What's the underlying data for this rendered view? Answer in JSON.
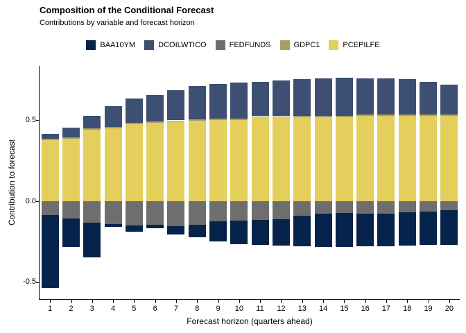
{
  "title": "Composition of the Conditional Forecast",
  "subtitle": "Contributions by variable and forecast horizon",
  "axes": {
    "x_title": "Forecast horizon (quarters ahead)",
    "y_title": "Contribution to forecast",
    "y_ticks": [
      {
        "label": "0.5",
        "value": 0.5
      },
      {
        "label": "0.0",
        "value": 0.0
      },
      {
        "label": "-0.5",
        "value": -0.5
      }
    ]
  },
  "chart_data": {
    "type": "bar",
    "stacked": true,
    "title": "Composition of the Conditional Forecast",
    "subtitle": "Contributions by variable and forecast horizon",
    "xlabel": "Forecast horizon (quarters ahead)",
    "ylabel": "Contribution to forecast",
    "legend_position": "top",
    "grid": false,
    "ylim": [
      -0.6,
      0.78
    ],
    "categories": [
      "1",
      "2",
      "3",
      "4",
      "5",
      "6",
      "7",
      "8",
      "9",
      "10",
      "11",
      "12",
      "13",
      "14",
      "15",
      "16",
      "17",
      "18",
      "19",
      "20"
    ],
    "series": [
      {
        "name": "BAA10YM",
        "color": "#06234b",
        "values": [
          -0.45,
          -0.176,
          -0.215,
          -0.017,
          -0.037,
          -0.024,
          -0.051,
          -0.081,
          -0.126,
          -0.147,
          -0.157,
          -0.164,
          -0.189,
          -0.205,
          -0.211,
          -0.2,
          -0.202,
          -0.206,
          -0.207,
          -0.214
        ]
      },
      {
        "name": "DCOILWTICO",
        "color": "#3d4f72",
        "values": [
          0.029,
          0.061,
          0.076,
          0.128,
          0.149,
          0.166,
          0.187,
          0.207,
          0.216,
          0.224,
          0.213,
          0.22,
          0.227,
          0.23,
          0.233,
          0.223,
          0.223,
          0.22,
          0.202,
          0.184
        ]
      },
      {
        "name": "FEDFUNDS",
        "color": "#6e6e6e",
        "values": [
          -0.086,
          -0.107,
          -0.132,
          -0.143,
          -0.151,
          -0.144,
          -0.154,
          -0.144,
          -0.122,
          -0.118,
          -0.115,
          -0.111,
          -0.089,
          -0.078,
          -0.072,
          -0.078,
          -0.076,
          -0.069,
          -0.064,
          -0.057
        ]
      },
      {
        "name": "GDPC1",
        "color": "#a59f68",
        "values": [
          0.008,
          0.008,
          0.008,
          0.008,
          0.008,
          0.008,
          0.008,
          0.008,
          0.008,
          0.008,
          0.008,
          0.008,
          0.008,
          0.008,
          0.008,
          0.008,
          0.008,
          0.008,
          0.008,
          0.008
        ]
      },
      {
        "name": "PCEPILFE",
        "color": "#e4cf5c",
        "values": [
          0.378,
          0.386,
          0.443,
          0.45,
          0.476,
          0.483,
          0.491,
          0.496,
          0.5,
          0.503,
          0.517,
          0.517,
          0.518,
          0.519,
          0.52,
          0.526,
          0.526,
          0.526,
          0.526,
          0.526
        ]
      }
    ]
  }
}
